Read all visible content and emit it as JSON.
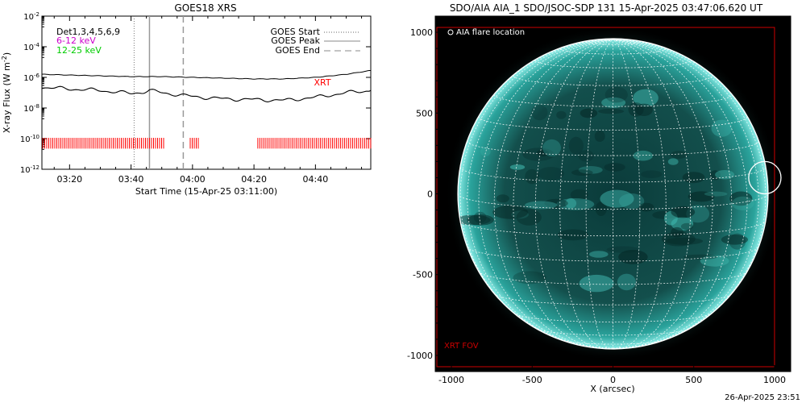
{
  "chart_data": [
    {
      "type": "line",
      "title": "GOES18 XRS",
      "xlabel": "Start Time (15-Apr-25 03:11:00)",
      "ylabel": "X-ray Flux (W m",
      "ylabel_exp": "-2",
      "ylabel_close": ")",
      "x_start_min": 191,
      "x_end_min": 298,
      "x_ticks": [
        {
          "min": 200,
          "label": "03:20"
        },
        {
          "min": 220,
          "label": "03:40"
        },
        {
          "min": 240,
          "label": "04:00"
        },
        {
          "min": 260,
          "label": "04:20"
        },
        {
          "min": 280,
          "label": "04:40"
        }
      ],
      "y_log": true,
      "y_ticks": [
        {
          "exp": -2,
          "base": "10",
          "sup": "-2"
        },
        {
          "exp": -4,
          "base": "10",
          "sup": "-4"
        },
        {
          "exp": -6,
          "base": "10",
          "sup": "-6"
        },
        {
          "exp": -8,
          "base": "10",
          "sup": "-8"
        },
        {
          "exp": -10,
          "base": "10",
          "sup": "-10"
        },
        {
          "exp": -12,
          "base": "10",
          "sup": "-12"
        }
      ],
      "ylim_exp": [
        -12,
        -2
      ],
      "legend_left": [
        {
          "label": "Det1,3,4,5,6,9",
          "color": "#000000"
        },
        {
          "label": "6-12 keV",
          "color": "#cc00cc"
        },
        {
          "label": "12-25 keV",
          "color": "#00cc00"
        }
      ],
      "legend_right": [
        {
          "label": "GOES Start",
          "style": "dotted"
        },
        {
          "label": "GOES Peak",
          "style": "solid"
        },
        {
          "label": "GOES End",
          "style": "dashed"
        }
      ],
      "event_lines": {
        "start_min": 221,
        "peak_min": 226,
        "end_min": 237
      },
      "xrt_label": "XRT",
      "xrt_color": "#ff0000",
      "xrt_segments": [
        [
          191,
          231
        ],
        [
          239,
          242
        ],
        [
          261,
          298
        ]
      ],
      "series": [
        {
          "name": "",
          "color": "#000000",
          "points": [
            [
              191,
              -5.8
            ],
            [
              200,
              -5.85
            ],
            [
              210,
              -5.9
            ],
            [
              220,
              -5.95
            ],
            [
              230,
              -5.95
            ],
            [
              240,
              -6.0
            ],
            [
              250,
              -6.05
            ],
            [
              260,
              -6.1
            ],
            [
              270,
              -6.1
            ],
            [
              280,
              -6.0
            ],
            [
              290,
              -5.8
            ],
            [
              298,
              -5.55
            ]
          ]
        },
        {
          "name": "",
          "color": "#000000",
          "points": [
            [
              191,
              -6.65
            ],
            [
              200,
              -6.75
            ],
            [
              210,
              -6.85
            ],
            [
              220,
              -7.05
            ],
            [
              224,
              -6.95
            ],
            [
              226,
              -6.85
            ],
            [
              230,
              -7.0
            ],
            [
              240,
              -7.25
            ],
            [
              250,
              -7.4
            ],
            [
              260,
              -7.45
            ],
            [
              270,
              -7.5
            ],
            [
              280,
              -7.3
            ],
            [
              290,
              -7.0
            ],
            [
              298,
              -6.85
            ]
          ]
        }
      ]
    },
    {
      "type": "image",
      "title": "SDO/AIA AIA_1 SDO/JSOC-SDP 131 15-Apr-2025 03:47:06.620 UT",
      "xlabel": "X (arcsec)",
      "ylabel": "",
      "xlim": [
        -1100,
        1100
      ],
      "ylim": [
        -1100,
        1100
      ],
      "x_ticks": [
        -1000,
        -500,
        0,
        500,
        1000
      ],
      "y_ticks": [
        -1000,
        -500,
        0,
        500,
        1000
      ],
      "x_tick_labels": [
        "-1000",
        "-500",
        "0",
        "500",
        "1000"
      ],
      "y_tick_labels": [
        "-1000",
        "-500",
        "0",
        "500",
        "1000"
      ],
      "solar_radius_arcsec": 960,
      "flare_location": {
        "label": "AIA flare location",
        "x": 940,
        "y": 100,
        "radius": 100
      },
      "xrt_fov": {
        "label": "XRT FOV",
        "x": [
          -1100,
          1000
        ],
        "y": [
          -1070,
          1030
        ],
        "color": "#cc0000"
      },
      "disk_color": "#1f8c86",
      "limb_color": "#9ff5ef"
    }
  ],
  "footer": {
    "timestamp": "26-Apr-2025 23:51"
  }
}
